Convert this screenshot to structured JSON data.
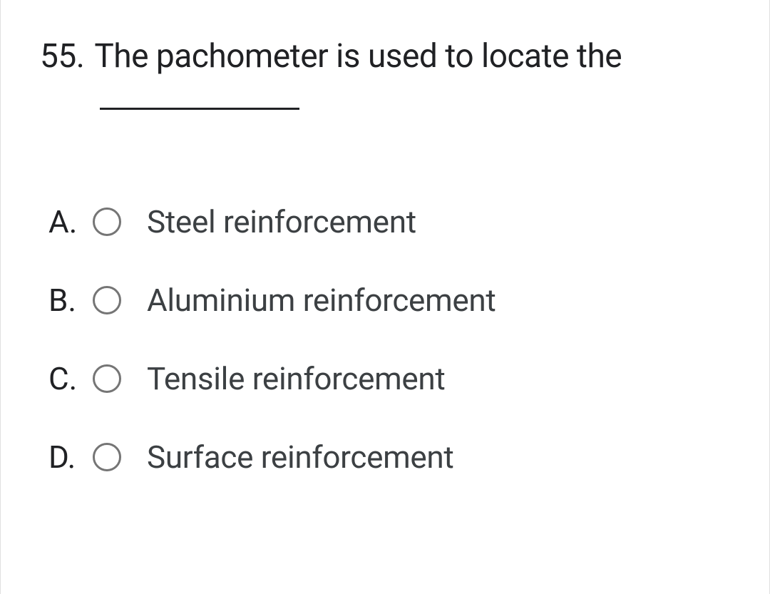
{
  "question": {
    "number": "55.",
    "text_before_blank": "The pachometer is used to locate the"
  },
  "options": [
    {
      "letter": "A.",
      "label": "Steel reinforcement"
    },
    {
      "letter": "B.",
      "label": "Aluminium reinforcement"
    },
    {
      "letter": "C.",
      "label": "Tensile reinforcement"
    },
    {
      "letter": "D.",
      "label": "Surface reinforcement"
    }
  ]
}
